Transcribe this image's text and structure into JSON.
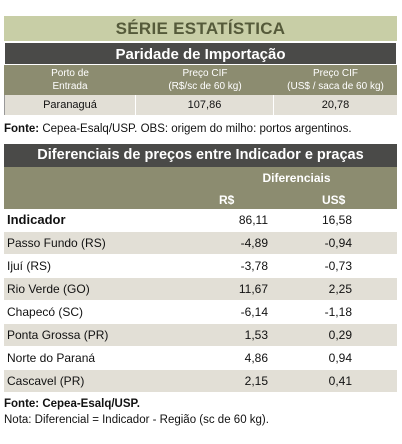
{
  "banner": "SÉRIE ESTATÍSTICA",
  "table1": {
    "title": "Paridade de Importação",
    "headers": [
      {
        "l1": "Porto de",
        "l2": "Entrada"
      },
      {
        "l1": "Preço CIF",
        "l2": "(R$/sc de 60 kg)"
      },
      {
        "l1": "Preço CIF",
        "l2": "(US$ / saca de 60 kg)"
      }
    ],
    "row": [
      "Paranaguá",
      "107,86",
      "20,78"
    ]
  },
  "source1": {
    "label": "Fonte:",
    "text": "Cepea-Esalq/USP. OBS: origem do milho: portos argentinos."
  },
  "table2": {
    "title": "Diferenciais de preços entre Indicador e praças",
    "group_header": "Diferenciais",
    "col_rs": "R$",
    "col_us": "US$",
    "rows": [
      {
        "name": "Indicador",
        "rs": "86,11",
        "us": "16,58"
      },
      {
        "name": "Passo Fundo (RS)",
        "rs": "-4,89",
        "us": "-0,94"
      },
      {
        "name": "Ijuí (RS)",
        "rs": "-3,78",
        "us": "-0,73"
      },
      {
        "name": "Rio Verde (GO)",
        "rs": "11,67",
        "us": "2,25"
      },
      {
        "name": "Chapecó (SC)",
        "rs": "-6,14",
        "us": "-1,18"
      },
      {
        "name": "Ponta Grossa (PR)",
        "rs": "1,53",
        "us": "0,29"
      },
      {
        "name": "Norte do Paraná",
        "rs": "4,86",
        "us": "0,94"
      },
      {
        "name": "Cascavel (PR)",
        "rs": "2,15",
        "us": "0,41"
      }
    ]
  },
  "source2": "Fonte: Cepea-Esalq/USP.",
  "note": "Nota: Diferencial = Indicador - Região (sc de 60 kg)."
}
